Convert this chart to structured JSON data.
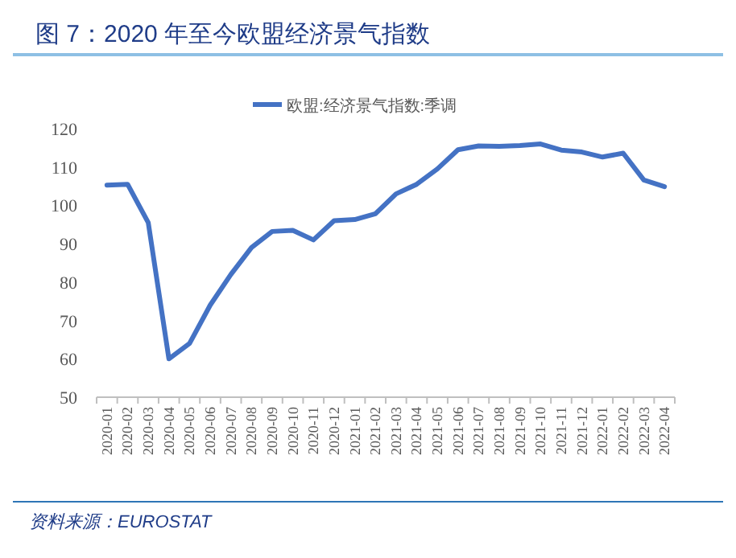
{
  "chart_data": {
    "type": "line",
    "title": "图 7：2020 年至今欧盟经济景气指数",
    "categories": [
      "2020-01",
      "2020-02",
      "2020-03",
      "2020-04",
      "2020-05",
      "2020-06",
      "2020-07",
      "2020-08",
      "2020-09",
      "2020-10",
      "2020-11",
      "2020-12",
      "2021-01",
      "2021-02",
      "2021-03",
      "2021-04",
      "2021-05",
      "2021-06",
      "2021-07",
      "2021-08",
      "2021-09",
      "2021-10",
      "2021-11",
      "2021-12",
      "2022-01",
      "2022-02",
      "2022-03",
      "2022-04"
    ],
    "series": [
      {
        "name": "欧盟:经济景气指数:季调",
        "color": "#4472c4",
        "values": [
          105.3,
          105.5,
          95.5,
          60,
          64,
          74,
          82,
          89,
          93.2,
          93.5,
          91,
          96,
          96.3,
          97.8,
          103,
          105.5,
          109.5,
          114.5,
          115.5,
          115.4,
          115.6,
          116,
          114.4,
          113.9,
          112.6,
          113.6,
          106.6,
          104.9
        ]
      }
    ],
    "ylim": [
      50,
      120
    ],
    "yticks": [
      50,
      60,
      70,
      80,
      90,
      100,
      110,
      120
    ],
    "grid": false,
    "legend": "top",
    "marker": "none",
    "line_style": "solid",
    "annotations": [
      "资料来源：EUROSTAT"
    ]
  }
}
